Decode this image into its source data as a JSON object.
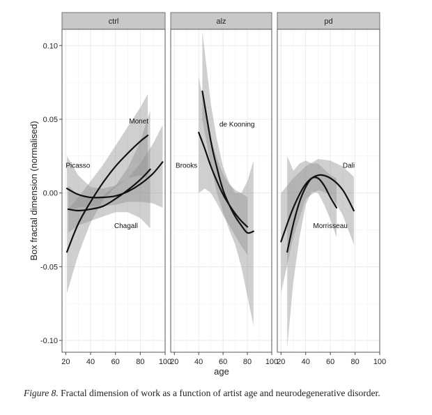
{
  "caption": {
    "label": "Figure 8.",
    "text": "Fractal dimension of work as a function of artist age and neurodegenerative disorder."
  },
  "chart_data": {
    "type": "line",
    "xlabel": "age",
    "ylabel": "Box fractal dimension (normalised)",
    "ylim": [
      -0.108,
      0.111
    ],
    "yticks": [
      -0.1,
      -0.05,
      0.0,
      0.05,
      0.1
    ],
    "ytick_labels": [
      "-0.10",
      "-0.05",
      "0.00",
      "0.05",
      "0.10"
    ],
    "grid": true,
    "colors": {
      "line": "#111111",
      "band_light": "#bfbfbf",
      "band_dark": "#8c8c8c",
      "strip": "#c8c8c8",
      "grid": "#e6e6e6",
      "frame": "#555555"
    },
    "panels": [
      {
        "name": "ctrl",
        "xlim": [
          17,
          100
        ],
        "xticks": [
          20,
          40,
          60,
          80,
          100
        ],
        "series": [
          {
            "name": "Picasso",
            "label_at": {
              "x": 20,
              "y": 0.019
            },
            "x": [
              21,
              30,
              40,
              50,
              60,
              70,
              80,
              90,
              98
            ],
            "y": [
              0.003,
              -0.001,
              -0.003,
              -0.003,
              -0.002,
              0.001,
              0.006,
              0.013,
              0.021
            ],
            "lower": [
              -0.012,
              -0.01,
              -0.009,
              -0.009,
              -0.008,
              -0.006,
              -0.006,
              -0.007,
              -0.01
            ],
            "upper": [
              0.025,
              0.012,
              0.004,
              0.003,
              0.005,
              0.01,
              0.02,
              0.033,
              0.046
            ]
          },
          {
            "name": "Monet",
            "label_at": {
              "x": 71,
              "y": 0.049
            },
            "x": [
              21,
              30,
              40,
              50,
              60,
              70,
              80,
              86
            ],
            "y": [
              -0.04,
              -0.021,
              -0.006,
              0.007,
              0.018,
              0.027,
              0.035,
              0.039
            ],
            "lower": [
              -0.068,
              -0.042,
              -0.02,
              -0.005,
              0.004,
              0.01,
              0.012,
              0.01
            ],
            "upper": [
              -0.012,
              -0.003,
              0.008,
              0.019,
              0.032,
              0.045,
              0.058,
              0.067
            ]
          },
          {
            "name": "Chagall",
            "label_at": {
              "x": 59,
              "y": -0.022
            },
            "x": [
              22,
              30,
              40,
              50,
              60,
              70,
              80,
              88
            ],
            "y": [
              -0.011,
              -0.012,
              -0.011,
              -0.009,
              -0.004,
              0.002,
              0.009,
              0.016
            ],
            "lower": [
              -0.027,
              -0.022,
              -0.019,
              -0.016,
              -0.013,
              -0.013,
              -0.017,
              -0.024
            ],
            "upper": [
              0.005,
              -0.002,
              -0.003,
              -0.002,
              0.005,
              0.017,
              0.035,
              0.056
            ]
          }
        ]
      },
      {
        "name": "alz",
        "xlim": [
          17,
          100
        ],
        "xticks": [
          20,
          40,
          60,
          80,
          100
        ],
        "series": [
          {
            "name": "Brooks",
            "label_at": {
              "x": 21,
              "y": 0.019
            },
            "x": [
              40,
              45,
              50,
              55,
              60,
              65,
              70,
              75,
              80
            ],
            "y": [
              0.041,
              0.03,
              0.018,
              0.008,
              -0.001,
              -0.008,
              -0.014,
              -0.019,
              -0.023
            ],
            "lower": [
              0.0,
              0.003,
              0.0,
              -0.007,
              -0.015,
              -0.022,
              -0.029,
              -0.036,
              -0.042
            ],
            "upper": [
              0.079,
              0.057,
              0.037,
              0.023,
              0.013,
              0.006,
              0.002,
              0.0,
              -0.003
            ]
          },
          {
            "name": "de Kooning",
            "label_at": {
              "x": 57,
              "y": 0.047
            },
            "x": [
              43,
              50,
              55,
              60,
              65,
              70,
              75,
              80,
              85
            ],
            "y": [
              0.069,
              0.035,
              0.017,
              0.002,
              -0.008,
              -0.016,
              -0.022,
              -0.027,
              -0.026
            ],
            "lower": [
              0.05,
              0.018,
              0.0,
              -0.013,
              -0.025,
              -0.035,
              -0.05,
              -0.07,
              -0.09
            ],
            "upper": [
              0.11,
              0.06,
              0.036,
              0.018,
              0.007,
              0.0,
              0.0,
              0.008,
              0.022
            ]
          }
        ]
      },
      {
        "name": "pd",
        "xlim": [
          17,
          100
        ],
        "xticks": [
          20,
          40,
          60,
          80,
          100
        ],
        "series": [
          {
            "name": "Dali",
            "label_at": {
              "x": 70,
              "y": 0.019
            },
            "x": [
              20,
              30,
              40,
              50,
              60,
              70,
              79
            ],
            "y": [
              -0.033,
              -0.01,
              0.006,
              0.012,
              0.01,
              0.002,
              -0.012
            ],
            "lower": [
              -0.068,
              -0.03,
              -0.004,
              0.002,
              -0.001,
              -0.015,
              -0.035
            ],
            "upper": [
              0.0,
              0.01,
              0.018,
              0.023,
              0.022,
              0.018,
              0.011
            ]
          },
          {
            "name": "Morrisseau",
            "label_at": {
              "x": 46,
              "y": -0.022
            },
            "x": [
              25,
              30,
              35,
              40,
              45,
              50,
              55,
              60,
              65
            ],
            "y": [
              -0.04,
              -0.021,
              -0.006,
              0.004,
              0.01,
              0.01,
              0.005,
              -0.003,
              -0.01
            ],
            "lower": [
              -0.105,
              -0.06,
              -0.03,
              -0.008,
              0.001,
              0.0,
              -0.008,
              -0.018,
              -0.03
            ],
            "upper": [
              0.025,
              0.015,
              0.02,
              0.022,
              0.02,
              0.02,
              0.016,
              0.012,
              0.01
            ]
          }
        ]
      }
    ]
  }
}
